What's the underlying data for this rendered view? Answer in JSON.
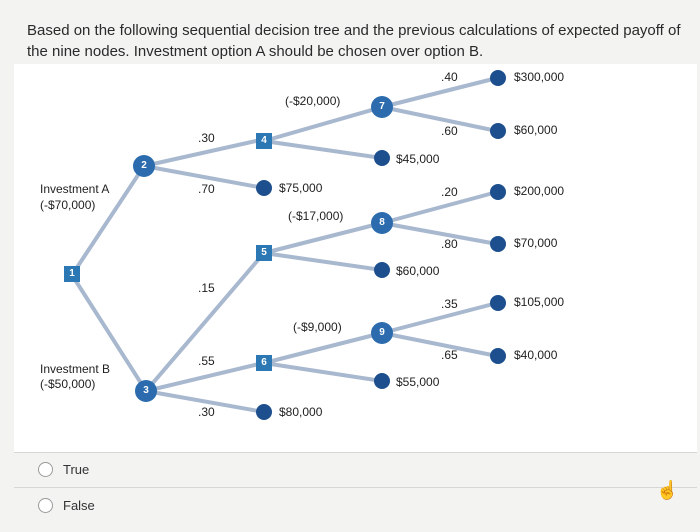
{
  "question": "Based on the following sequential decision tree and the previous calculations of expected payoff of the nine nodes. Investment option A should be chosen over option B.",
  "tree": {
    "decisions": [
      "1",
      "4",
      "5",
      "6"
    ],
    "chances": [
      "2",
      "3",
      "7",
      "8",
      "9"
    ],
    "labels": {
      "inv_a": "Investment A",
      "inv_a_cost": "(-$70,000)",
      "inv_b": "Investment B",
      "inv_b_cost": "(-$50,000)",
      "p30_top": ".30",
      "p70": ".70",
      "p15": ".15",
      "p55": ".55",
      "p30_bot": ".30",
      "c7": "(-$20,000)",
      "c8": "(-$17,000)",
      "c9": "(-$9,000)",
      "v75": "$75,000",
      "v80": "$80,000",
      "p40": ".40",
      "p60": ".60",
      "p20": ".20",
      "p80": ".80",
      "p35": ".35",
      "p65": ".65",
      "v45": "$45,000",
      "v60k": "$60,000",
      "v55": "$55,000",
      "o300": "$300,000",
      "o60": "$60,000",
      "o200": "$200,000",
      "o70": "$70,000",
      "o105": "$105,000",
      "o40": "$40,000"
    }
  },
  "options": [
    "True",
    "False"
  ],
  "colors": {
    "branch": "#a8b8cf",
    "node": "#2c6cae",
    "decision": "#2c78b4",
    "terminal": "#1d4f8e"
  }
}
